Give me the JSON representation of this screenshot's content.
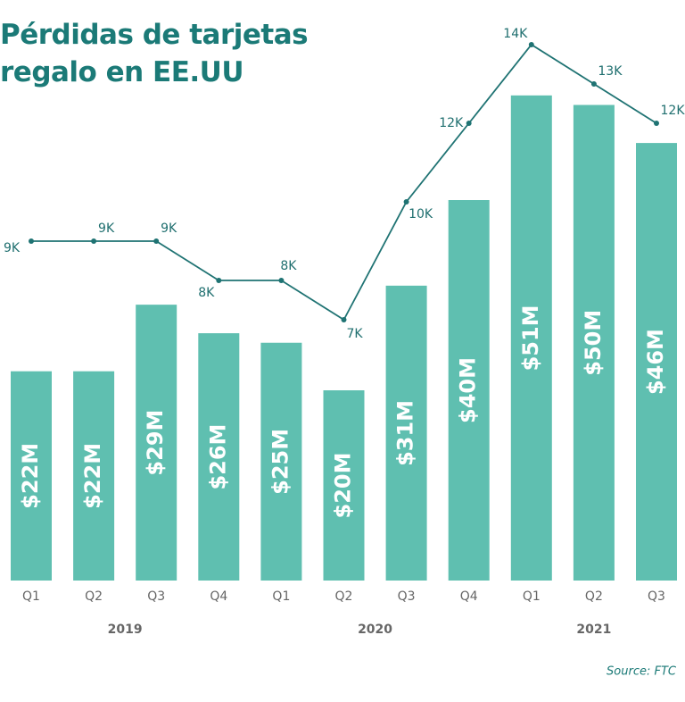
{
  "chart_data": {
    "type": "bar-line",
    "title": "Pérdidas de tarjetas regalo en EE.UU",
    "source": "Source: FTC",
    "categories": [
      "Q1",
      "Q2",
      "Q3",
      "Q4",
      "Q1",
      "Q2",
      "Q3",
      "Q4",
      "Q1",
      "Q2",
      "Q3"
    ],
    "groups": [
      {
        "label": "2019",
        "span": 4
      },
      {
        "label": "2020",
        "span": 4
      },
      {
        "label": "2021",
        "span": 3
      }
    ],
    "series": [
      {
        "type": "bar",
        "color": "#5fbfb0",
        "values": [
          22,
          22,
          29,
          26,
          25,
          20,
          31,
          40,
          51,
          50,
          46
        ],
        "value_labels": [
          "$22M",
          "$22M",
          "$29M",
          "$26M",
          "$25M",
          "$20M",
          "$31M",
          "$40M",
          "$51M",
          "$50M",
          "$46M"
        ]
      },
      {
        "type": "line",
        "color": "#1f7373",
        "values": [
          9,
          9,
          9,
          8,
          8,
          7,
          10,
          12,
          14,
          13,
          12
        ],
        "value_labels": [
          "9K",
          "9K",
          "9K",
          "8K",
          "8K",
          "7K",
          "10K",
          "12K",
          "14K",
          "13K",
          "12K"
        ]
      }
    ]
  }
}
